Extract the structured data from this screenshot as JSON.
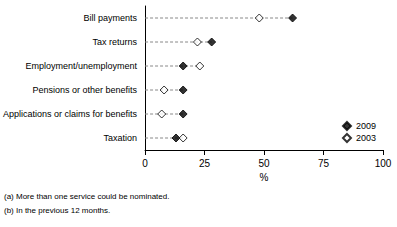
{
  "chart_data": {
    "type": "dot",
    "categories": [
      "Bill payments",
      "Tax returns",
      "Employment/unemployment",
      "Pensions or other benefits",
      "Applications or claims for benefits",
      "Taxation"
    ],
    "series": [
      {
        "name": "2009",
        "color": "#000000",
        "marker": "diamond",
        "values": [
          62,
          28,
          16,
          16,
          16,
          13
        ]
      },
      {
        "name": "2003",
        "color": "#000000",
        "marker": "open-diamond",
        "values": [
          48,
          22,
          23,
          8,
          7,
          16
        ]
      }
    ],
    "x_label": "%",
    "xlim": [
      0,
      100
    ],
    "xticks": [
      0,
      25,
      50,
      75,
      100
    ],
    "orientation": "horizontal",
    "grid": false,
    "legend": "lower right",
    "annotations": [
      "(a) More than one service could be nominated.",
      "(b) In the previous 12 months."
    ]
  }
}
